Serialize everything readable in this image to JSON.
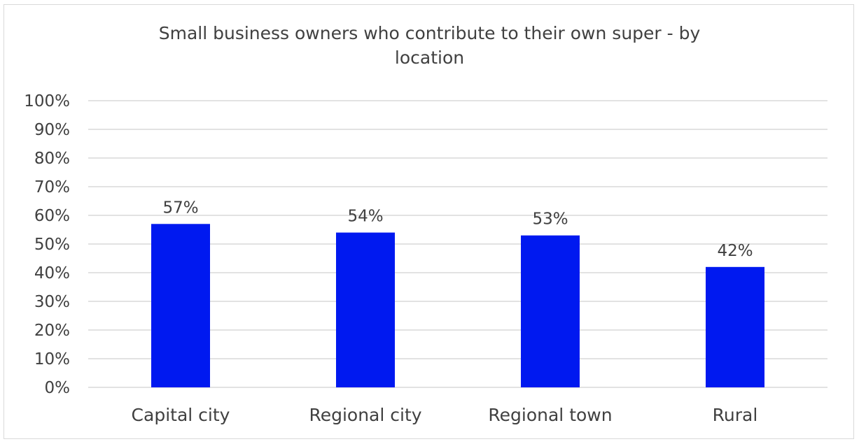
{
  "chart_data": {
    "type": "bar",
    "title_lines": [
      "Small business owners who contribute to their own super -  by",
      "location"
    ],
    "categories": [
      "Capital city",
      "Regional city",
      "Regional town",
      "Rural"
    ],
    "values": [
      57,
      54,
      53,
      42
    ],
    "data_labels": [
      "57%",
      "54%",
      "53%",
      "42%"
    ],
    "y_ticks": [
      "0%",
      "10%",
      "20%",
      "30%",
      "40%",
      "50%",
      "60%",
      "70%",
      "80%",
      "90%",
      "100%"
    ],
    "ylim": [
      0,
      100
    ],
    "grid": true,
    "legend": "none",
    "bar_color": "#0019f0",
    "grid_color": "#d9d9d9"
  }
}
